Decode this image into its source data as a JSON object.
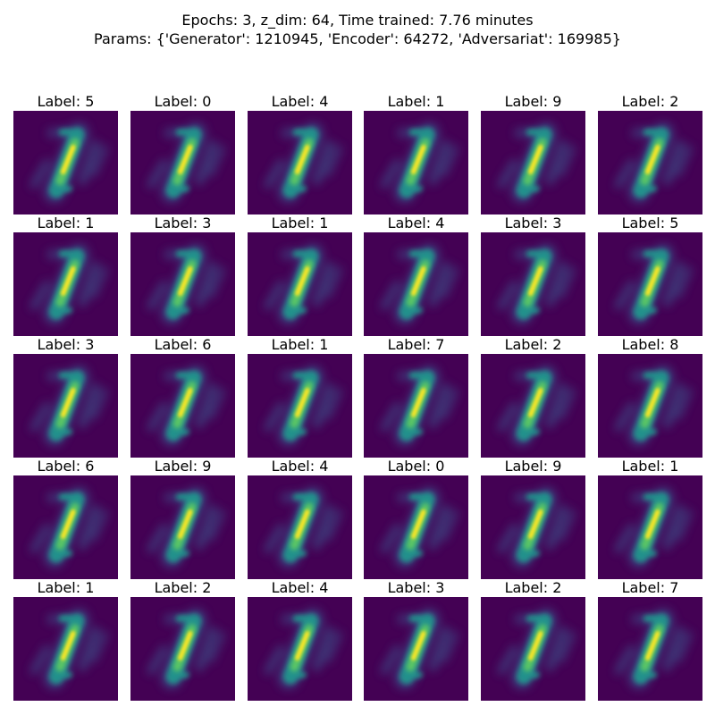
{
  "figure": {
    "title_line_1": "Epochs: 3, z_dim: 64, Time trained: 7.76 minutes",
    "title_line_2": "Params: {'Generator': 1210945, 'Encoder': 64272, 'Adversariat': 169985}",
    "colormap": "viridis",
    "colors": {
      "background": "#440154",
      "low": "#3b528b",
      "mid": "#21918c",
      "high": "#5ec962",
      "peak": "#fde725"
    },
    "panels": [
      {
        "label": "Label: 5"
      },
      {
        "label": "Label: 0"
      },
      {
        "label": "Label: 4"
      },
      {
        "label": "Label: 1"
      },
      {
        "label": "Label: 9"
      },
      {
        "label": "Label: 2"
      },
      {
        "label": "Label: 1"
      },
      {
        "label": "Label: 3"
      },
      {
        "label": "Label: 1"
      },
      {
        "label": "Label: 4"
      },
      {
        "label": "Label: 3"
      },
      {
        "label": "Label: 5"
      },
      {
        "label": "Label: 3"
      },
      {
        "label": "Label: 6"
      },
      {
        "label": "Label: 1"
      },
      {
        "label": "Label: 7"
      },
      {
        "label": "Label: 2"
      },
      {
        "label": "Label: 8"
      },
      {
        "label": "Label: 6"
      },
      {
        "label": "Label: 9"
      },
      {
        "label": "Label: 4"
      },
      {
        "label": "Label: 0"
      },
      {
        "label": "Label: 9"
      },
      {
        "label": "Label: 1"
      },
      {
        "label": "Label: 1"
      },
      {
        "label": "Label: 2"
      },
      {
        "label": "Label: 4"
      },
      {
        "label": "Label: 3"
      },
      {
        "label": "Label: 2"
      },
      {
        "label": "Label: 7"
      }
    ]
  }
}
